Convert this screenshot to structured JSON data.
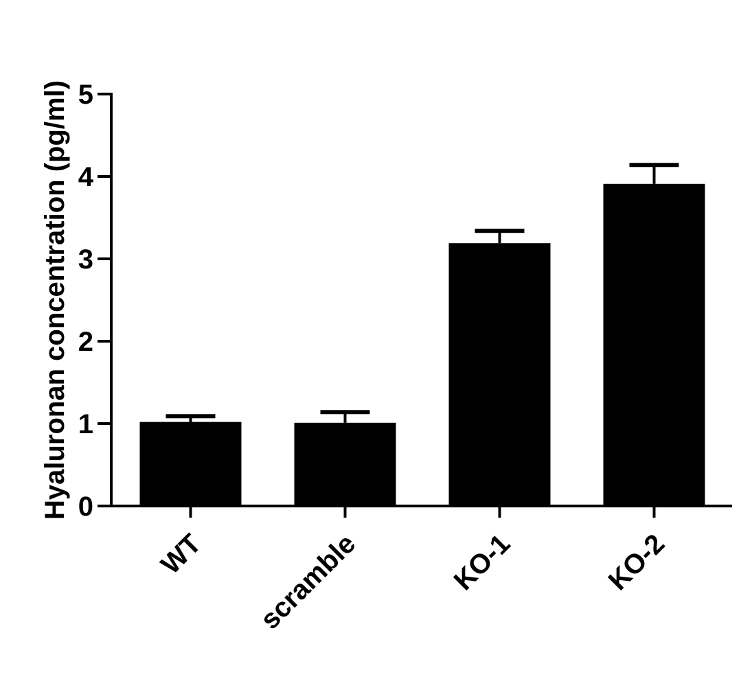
{
  "chart_data": {
    "type": "bar",
    "title": "",
    "xlabel": "",
    "ylabel": "Hyaluronan concentration (pg/ml)",
    "categories": [
      "WT",
      "scramble",
      "KO-1",
      "KO-2"
    ],
    "values": [
      1.02,
      1.01,
      3.19,
      3.91
    ],
    "error_upper": [
      0.07,
      0.13,
      0.15,
      0.23
    ],
    "ylim": [
      0,
      5
    ],
    "yticks": [
      0,
      1,
      2,
      3,
      4,
      5
    ],
    "grid": false,
    "legend": "none",
    "bar_color": "#000000",
    "axis_color": "#000000"
  }
}
